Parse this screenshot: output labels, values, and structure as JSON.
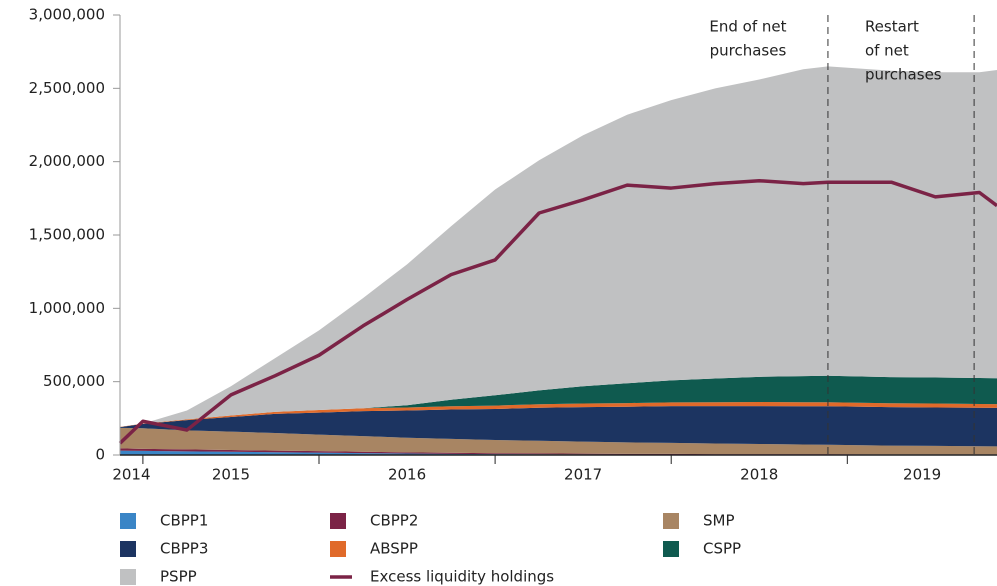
{
  "chart_data": {
    "type": "stacked_area",
    "x": [
      2014.87,
      2015,
      2015.25,
      2015.5,
      2015.75,
      2016,
      2016.25,
      2016.5,
      2016.75,
      2017,
      2017.25,
      2017.5,
      2017.75,
      2018,
      2018.25,
      2018.5,
      2018.75,
      2018.89,
      2019.25,
      2019.5,
      2019.75,
      2019.85
    ],
    "series": [
      {
        "name": "CBPP1",
        "color": "#3a85c6",
        "values": [
          30000,
          28000,
          25000,
          22000,
          19000,
          16000,
          13000,
          10000,
          8000,
          6000,
          5000,
          4000,
          3000,
          3000,
          2000,
          2000,
          2000,
          2000,
          1000,
          1000,
          1000,
          1000
        ]
      },
      {
        "name": "CBPP2",
        "color": "#7b2346",
        "values": [
          15000,
          14000,
          13000,
          12000,
          11000,
          10000,
          9000,
          8000,
          7000,
          6000,
          6000,
          5000,
          5000,
          5000,
          4000,
          4000,
          4000,
          4000,
          3000,
          3000,
          3000,
          3000
        ]
      },
      {
        "name": "SMP",
        "color": "#a88563",
        "values": [
          140000,
          140000,
          130000,
          125000,
          120000,
          113000,
          107000,
          100000,
          95000,
          90000,
          86000,
          82000,
          78000,
          75000,
          72000,
          69000,
          66000,
          64000,
          60000,
          58000,
          56000,
          55000
        ]
      },
      {
        "name": "CBPP3",
        "color": "#1c3461",
        "values": [
          5000,
          30000,
          70000,
          100000,
          130000,
          150000,
          170000,
          185000,
          200000,
          212000,
          225000,
          235000,
          243000,
          250000,
          255000,
          258000,
          260000,
          262000,
          262000,
          262000,
          262000,
          262000
        ]
      },
      {
        "name": "ABSPP",
        "color": "#e06a2a",
        "values": [
          2000,
          2000,
          5000,
          10000,
          14000,
          18000,
          20000,
          21000,
          22000,
          23000,
          24000,
          25000,
          25000,
          26000,
          27000,
          28000,
          28000,
          28000,
          27000,
          27000,
          26000,
          26000
        ]
      },
      {
        "name": "CSPP",
        "color": "#0f5a4f",
        "values": [
          0,
          0,
          0,
          0,
          0,
          0,
          0,
          15000,
          45000,
          70000,
          95000,
          118000,
          135000,
          150000,
          162000,
          172000,
          178000,
          180000,
          178000,
          177000,
          177000,
          176000
        ]
      },
      {
        "name": "PSPP",
        "color": "#c0c1c2",
        "values": [
          0,
          0,
          60000,
          200000,
          366000,
          543000,
          751000,
          961000,
          1183000,
          1403000,
          1569000,
          1711000,
          1831000,
          1911000,
          1978000,
          2027000,
          2092000,
          2110000,
          2089000,
          2082000,
          2085000,
          2102000
        ]
      },
      {
        "name": "Excess liquidity holdings",
        "type": "line",
        "color": "#7b2346",
        "values": [
          80000,
          230000,
          170000,
          410000,
          540000,
          680000,
          880000,
          1060000,
          1230000,
          1330000,
          1650000,
          1740000,
          1840000,
          1820000,
          1850000,
          1870000,
          1850000,
          1860000,
          1860000,
          1760000,
          1790000,
          1700000
        ]
      }
    ],
    "xlim": [
      2014.87,
      2019.85
    ],
    "xticks": [
      2014,
      2015,
      2016,
      2017,
      2018,
      2019
    ],
    "ylim": [
      0,
      3000000
    ],
    "yticks": [
      0,
      {
        "value": 500000,
        "label": "500,000"
      },
      {
        "value": 1000000,
        "label": "1,000,000"
      },
      {
        "value": 1500000,
        "label": "1,500,000"
      },
      {
        "value": 2000000,
        "label": "2,000,000"
      },
      {
        "value": 2500000,
        "label": "2,500,000"
      },
      {
        "value": 3000000,
        "label": "3,000,000"
      }
    ],
    "annotations": [
      {
        "x": 2018.89,
        "lines": [
          "End of net",
          "purchases"
        ],
        "side": "left"
      },
      {
        "x": 2019.72,
        "lines": [
          "Restart",
          "of net",
          "purchases"
        ],
        "side": "left-inner"
      }
    ]
  }
}
